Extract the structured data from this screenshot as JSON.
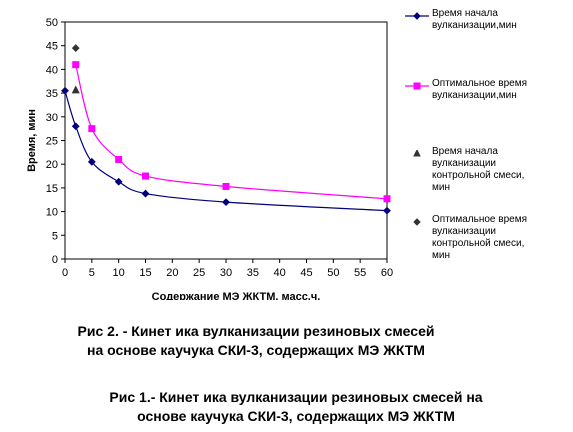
{
  "chart_data": {
    "type": "line",
    "xlabel": "Содержание МЭ ЖКТМ, масс.ч.",
    "ylabel": "Время, мин",
    "x_categories": [
      0,
      5,
      10,
      15,
      20,
      25,
      30,
      35,
      40,
      45,
      50,
      55,
      60
    ],
    "ylim": [
      0,
      50
    ],
    "ytick_step": 5,
    "grid": false,
    "legend_position": "right",
    "series": [
      {
        "name": "Время начала вулканизации,мин",
        "color": "#000080",
        "marker": "diamond",
        "points": [
          [
            0,
            35.5
          ],
          [
            2,
            28
          ],
          [
            5,
            20.5
          ],
          [
            10,
            16.3
          ],
          [
            15,
            13.8
          ],
          [
            30,
            12
          ],
          [
            60,
            10.2
          ]
        ]
      },
      {
        "name": "Оптимальное время вулканизации,мин",
        "color": "#ff00ff",
        "marker": "square",
        "points": [
          [
            2,
            41
          ],
          [
            5,
            27.5
          ],
          [
            10,
            21
          ],
          [
            15,
            17.5
          ],
          [
            30,
            15.3
          ],
          [
            60,
            12.7
          ]
        ]
      },
      {
        "name": "Время начала вулканизации контрольной смеси, мин",
        "color": "#333333",
        "marker": "triangle",
        "points": [
          [
            2,
            35.5
          ]
        ]
      },
      {
        "name": "Оптимальное время вулканизации контрольной смеси, мин",
        "color": "#333333",
        "marker": "diamond",
        "points": [
          [
            2,
            44.5
          ]
        ]
      }
    ]
  },
  "captions": {
    "fig2_line1": "Рис 2. - Кинет ика вулканизации резиновых смесей",
    "fig2_line2": "на основе каучука СКИ-3, содержащих МЭ ЖКТМ",
    "fig1_line1": "Рис 1.- Кинет ика вулканизации резиновых смесей на",
    "fig1_line2": "основе каучука СКИ-3, содержащих МЭ ЖКТМ"
  }
}
